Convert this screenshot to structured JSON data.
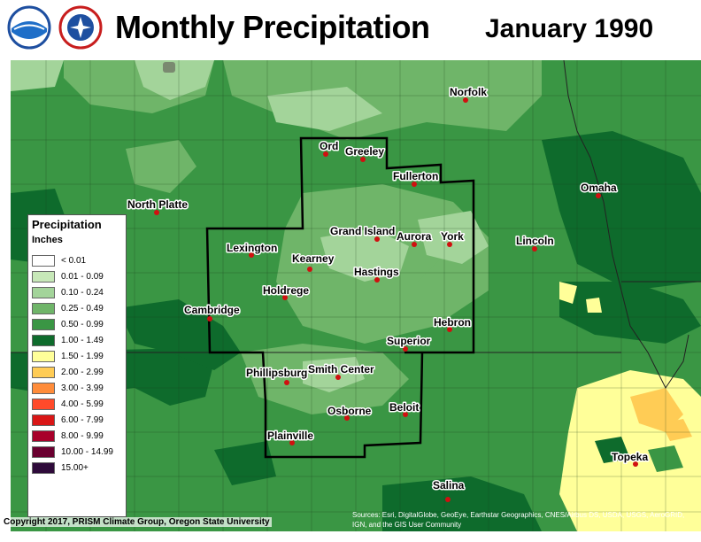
{
  "header": {
    "title": "Monthly Precipitation",
    "date": "January 1990"
  },
  "logos": [
    {
      "name": "noaa-logo-icon"
    },
    {
      "name": "nws-logo-icon"
    }
  ],
  "legend": {
    "title": "Precipitation",
    "unit": "Inches",
    "bins": [
      {
        "label": "< 0.01",
        "color": "#ffffff"
      },
      {
        "label": "0.01 - 0.09",
        "color": "#c7e8b8"
      },
      {
        "label": "0.10 - 0.24",
        "color": "#a3d49a"
      },
      {
        "label": "0.25 - 0.49",
        "color": "#6fb569"
      },
      {
        "label": "0.50 - 0.99",
        "color": "#3a9644"
      },
      {
        "label": "1.00 - 1.49",
        "color": "#0e6b2c"
      },
      {
        "label": "1.50 - 1.99",
        "color": "#ffff99"
      },
      {
        "label": "2.00 - 2.99",
        "color": "#ffcc55"
      },
      {
        "label": "3.00 - 3.99",
        "color": "#ff8c3a"
      },
      {
        "label": "4.00 - 5.99",
        "color": "#ff4a2a"
      },
      {
        "label": "6.00 - 7.99",
        "color": "#d91616"
      },
      {
        "label": "8.00 - 9.99",
        "color": "#a8002a"
      },
      {
        "label": "10.00 - 14.99",
        "color": "#6a0030"
      },
      {
        "label": "15.00+",
        "color": "#2e0a3a"
      }
    ]
  },
  "cities": {
    "norfolk": "Norfolk",
    "ord": "Ord",
    "greeley": "Greeley",
    "fullerton": "Fullerton",
    "north_platte": "North Platte",
    "omaha": "Omaha",
    "grand_island": "Grand Island",
    "aurora": "Aurora",
    "york": "York",
    "lexington": "Lexington",
    "lincoln": "Lincoln",
    "kearney": "Kearney",
    "hastings": "Hastings",
    "holdrege": "Holdrege",
    "cambridge": "Cambridge",
    "hebron": "Hebron",
    "superior": "Superior",
    "phillipsburg": "Phillipsburg",
    "smith_center": "Smith Center",
    "osborne": "Osborne",
    "beloit": "Beloit",
    "plainville": "Plainville",
    "topeka": "Topeka",
    "salina": "Salina"
  },
  "footer": {
    "copyright": "Copyright 2017, PRISM Climate Group, Oregon State University",
    "attribution": "Sources: Esri, DigitalGlobe, GeoEye, Earthstar Geographics, CNES/Airbus DS, USDA, USGS, AeroGRID, IGN, and the GIS User Community"
  },
  "colors": {
    "base_green": "#3a9644",
    "dark_green": "#0e6b2c",
    "light_green": "#6fb569",
    "pale_green": "#a3d49a",
    "yellow": "#ffff99"
  }
}
